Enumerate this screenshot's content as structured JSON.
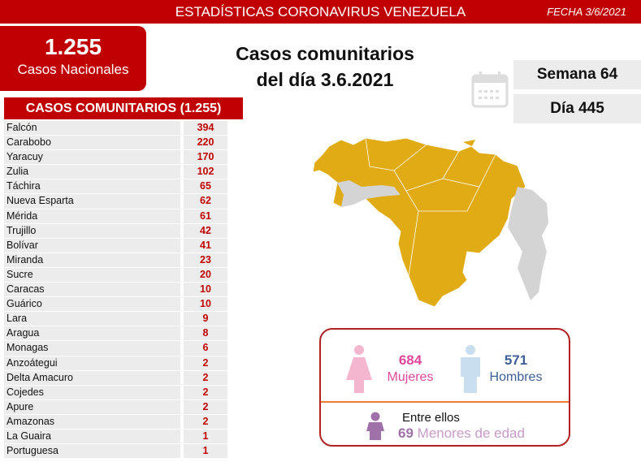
{
  "header": {
    "title": "ESTADÍSTICAS CORONAVIRUS VENEZUELA",
    "date": "FECHA 3/6/2021"
  },
  "national": {
    "count": "1.255",
    "label": "Casos Nacionales"
  },
  "main_title": {
    "line1": "Casos comunitarios",
    "line2": "del día 3.6.2021"
  },
  "week": "Semana 64",
  "day": "Día 445",
  "calendar_icon": "calendar-icon",
  "table": {
    "header": "CASOS COMUNITARIOS (1.255)",
    "rows": [
      {
        "state": "Falcón",
        "cases": "394"
      },
      {
        "state": "Carabobo",
        "cases": "220"
      },
      {
        "state": "Yaracuy",
        "cases": "170"
      },
      {
        "state": "Zulia",
        "cases": "102"
      },
      {
        "state": "Táchira",
        "cases": "65"
      },
      {
        "state": "Nueva Esparta",
        "cases": "62"
      },
      {
        "state": "Mérida",
        "cases": "61"
      },
      {
        "state": "Trujillo",
        "cases": "42"
      },
      {
        "state": "Bolívar",
        "cases": "41"
      },
      {
        "state": "Miranda",
        "cases": "23"
      },
      {
        "state": "Sucre",
        "cases": "20"
      },
      {
        "state": "Caracas",
        "cases": "10"
      },
      {
        "state": "Guárico",
        "cases": "10"
      },
      {
        "state": "Lara",
        "cases": "9"
      },
      {
        "state": "Aragua",
        "cases": "8"
      },
      {
        "state": "Monagas",
        "cases": "6"
      },
      {
        "state": "Anzoátegui",
        "cases": "2"
      },
      {
        "state": "Delta Amacuro",
        "cases": "2"
      },
      {
        "state": "Cojedes",
        "cases": "2"
      },
      {
        "state": "Apure",
        "cases": "2"
      },
      {
        "state": "Amazonas",
        "cases": "2"
      },
      {
        "state": "La Guaira",
        "cases": "1"
      },
      {
        "state": "Portuguesa",
        "cases": "1"
      }
    ]
  },
  "colors": {
    "brand": "#c00000",
    "map_cases": "#e0ab14",
    "map_none": "#d4d4d4",
    "women": "#e0479a",
    "men": "#3f5e97",
    "minors": "#a070a8"
  },
  "gender": {
    "women_count": "684",
    "women_label": "Mujeres",
    "men_count": "571",
    "men_label": "Hombres",
    "minors_prefix": "Entre ellos",
    "minors_count": "69",
    "minors_label": "Menores de edad"
  }
}
